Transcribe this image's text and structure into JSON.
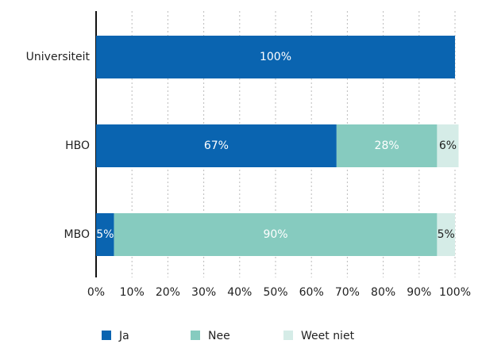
{
  "chart_data": {
    "type": "stacked-barh",
    "categories": [
      "Universiteit",
      "HBO",
      "MBO"
    ],
    "series": [
      {
        "name": "Ja",
        "color": "#0a64b0",
        "values": [
          100,
          67,
          5
        ],
        "value_labels": [
          "100%",
          "67%",
          "5%"
        ]
      },
      {
        "name": "Nee",
        "color": "#86cbbf",
        "values": [
          null,
          28,
          90
        ],
        "value_labels": [
          null,
          "28%",
          "90%"
        ]
      },
      {
        "name": "Weet niet",
        "color": "#d5ece7",
        "values": [
          null,
          6,
          5
        ],
        "value_labels": [
          null,
          "6%",
          "5%"
        ]
      }
    ],
    "xlim": [
      0,
      100
    ],
    "xticks": [
      {
        "value": 0,
        "label": "0%"
      },
      {
        "value": 10,
        "label": "10%"
      },
      {
        "value": 20,
        "label": "20%"
      },
      {
        "value": 30,
        "label": "30%"
      },
      {
        "value": 40,
        "label": "40%"
      },
      {
        "value": 50,
        "label": "50%"
      },
      {
        "value": 60,
        "label": "60%"
      },
      {
        "value": 70,
        "label": "70%"
      },
      {
        "value": 80,
        "label": "80%"
      },
      {
        "value": 90,
        "label": "90%"
      },
      {
        "value": 100,
        "label": "100%"
      }
    ],
    "grid": true,
    "legend": "bottom"
  }
}
